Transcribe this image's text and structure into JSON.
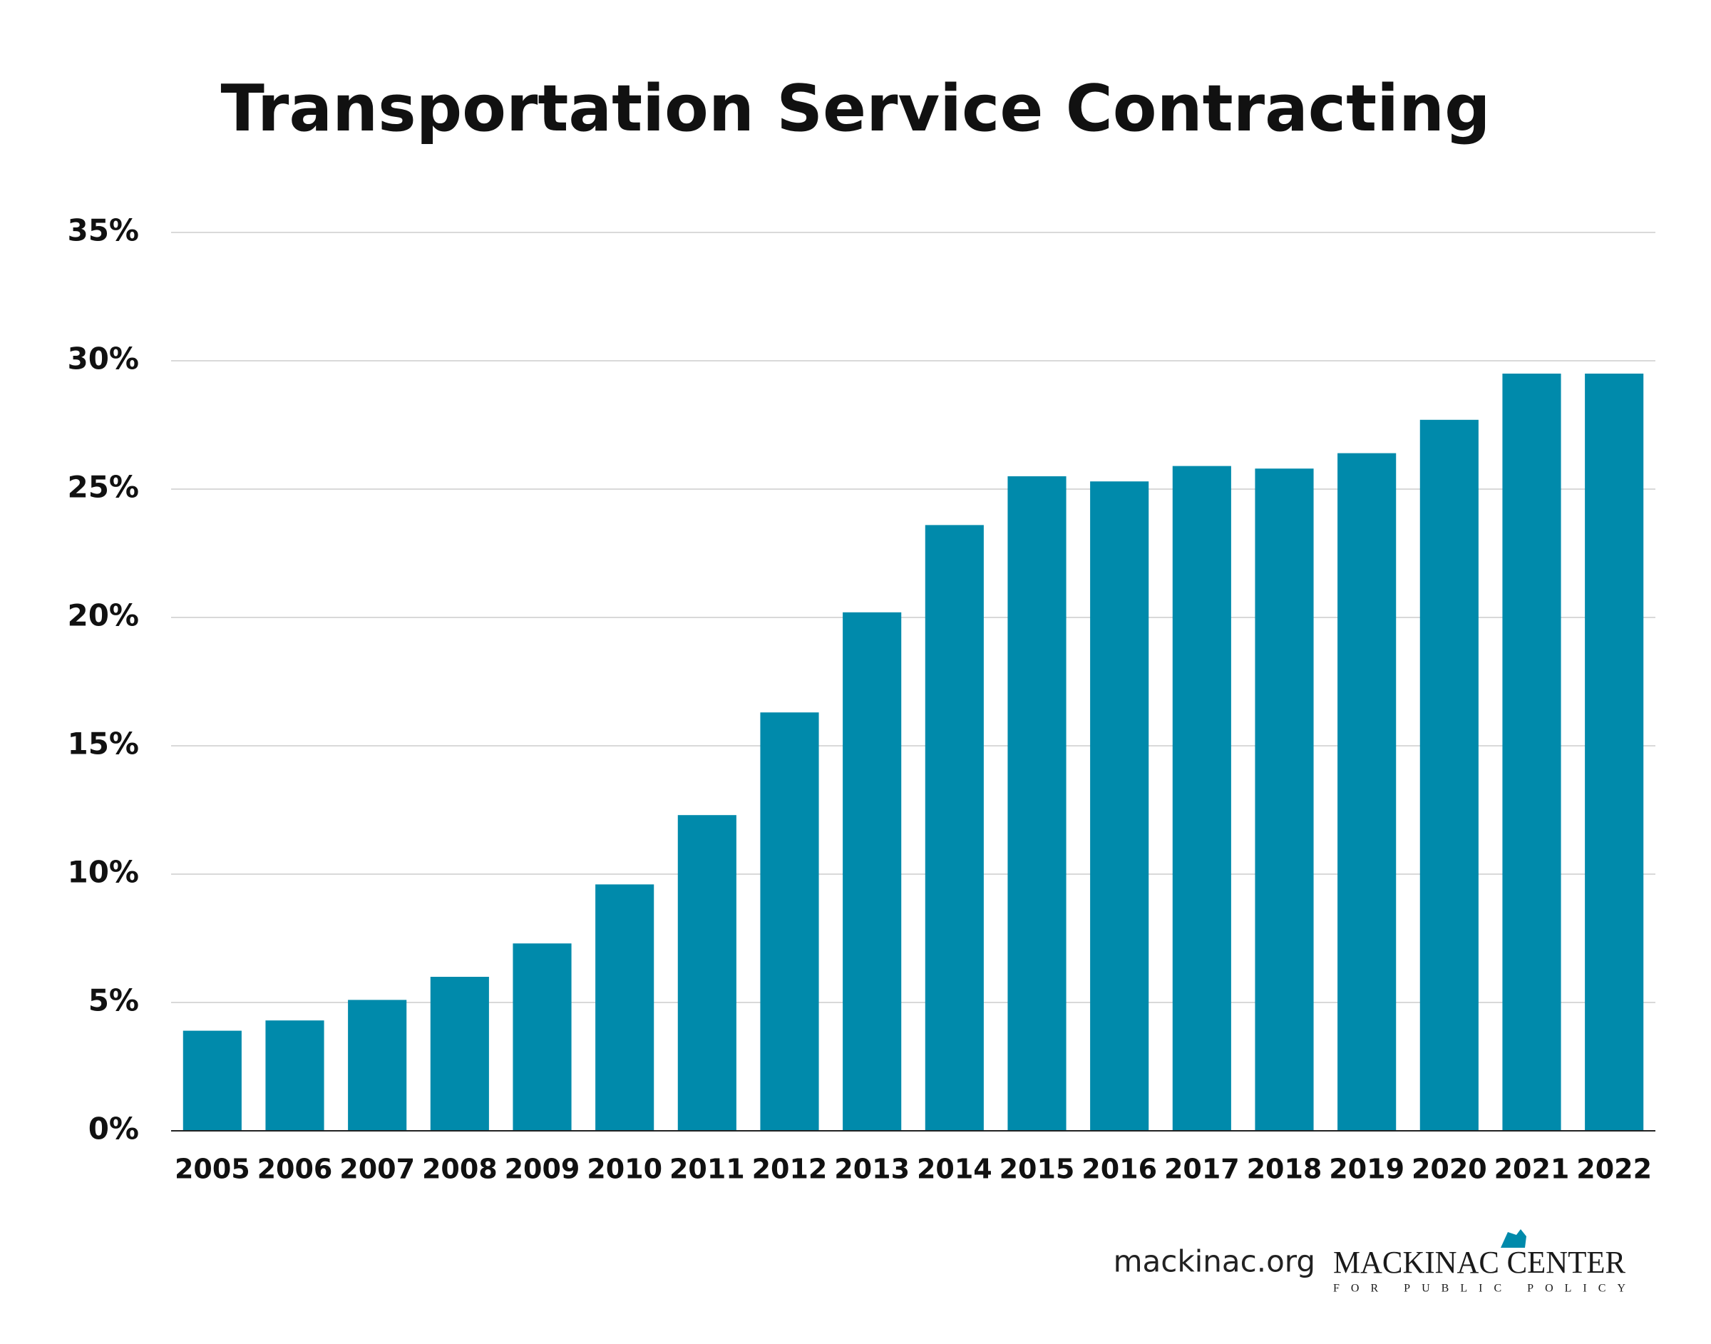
{
  "chart_data": {
    "type": "bar",
    "title": "Transportation Service Contracting",
    "categories": [
      "2005",
      "2006",
      "2007",
      "2008",
      "2009",
      "2010",
      "2011",
      "2012",
      "2013",
      "2014",
      "2015",
      "2016",
      "2017",
      "2018",
      "2019",
      "2020",
      "2021",
      "2022"
    ],
    "values": [
      3.9,
      4.3,
      5.1,
      6.0,
      7.3,
      9.6,
      12.3,
      16.3,
      20.2,
      23.6,
      25.5,
      25.3,
      25.9,
      25.8,
      26.4,
      27.7,
      29.5,
      29.5
    ],
    "color": "#008aab",
    "ylim": [
      0,
      35
    ],
    "yticks": [
      {
        "value": 0,
        "label": "0%"
      },
      {
        "value": 5,
        "label": "5%"
      },
      {
        "value": 10,
        "label": "10%"
      },
      {
        "value": 15,
        "label": "15%"
      },
      {
        "value": 20,
        "label": "20%"
      },
      {
        "value": 25,
        "label": "25%"
      },
      {
        "value": 30,
        "label": "30%"
      },
      {
        "value": 35,
        "label": "35%"
      }
    ],
    "grid": true
  },
  "footer": {
    "site": "mackinac.org",
    "logo_name": "MACKINAC CENTER",
    "logo_tagline": "FOR PUBLIC POLICY"
  }
}
